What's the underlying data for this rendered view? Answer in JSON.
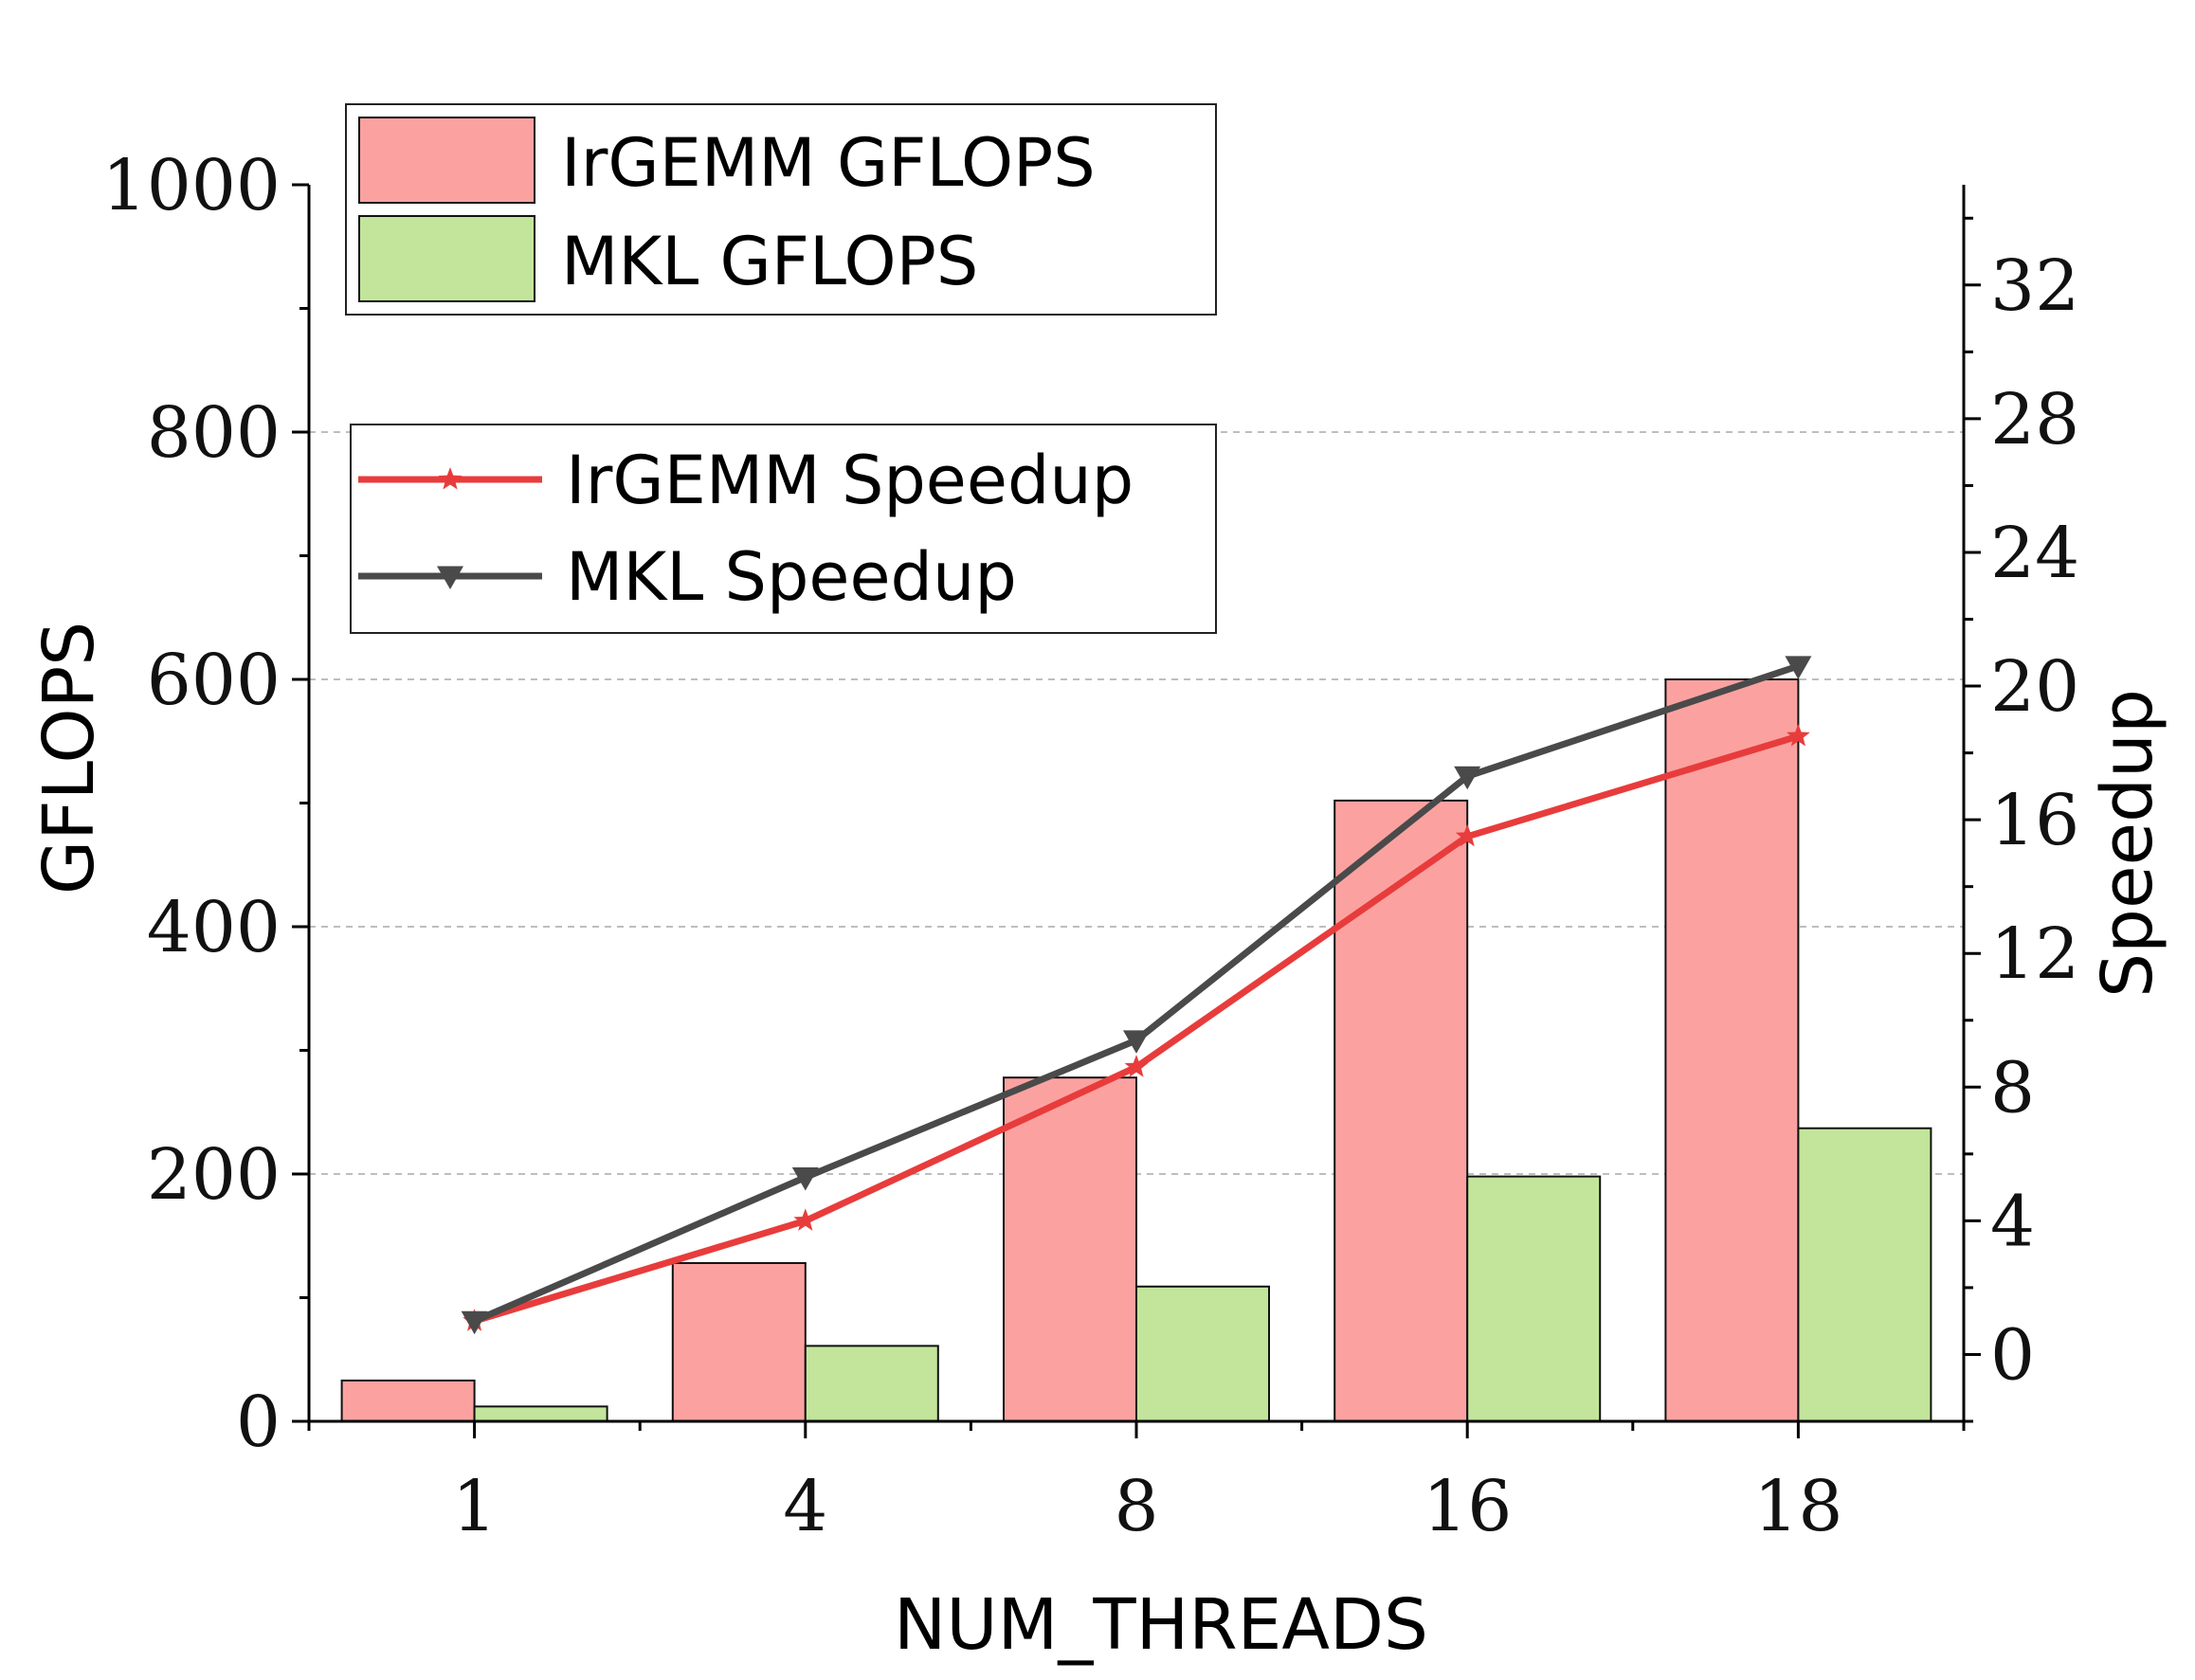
{
  "chart_data": {
    "type": "bar",
    "categories": [
      "1",
      "4",
      "8",
      "16",
      "18"
    ],
    "xlabel": "NUM_THREADS",
    "ylabel": "GFLOPS",
    "y2label": "Speedup",
    "ylim": [
      0,
      1000
    ],
    "yticks": [
      0,
      200,
      400,
      600,
      800,
      1000
    ],
    "y2lim": [
      -2,
      35
    ],
    "y2ticks": [
      0,
      4,
      8,
      12,
      16,
      20,
      24,
      28,
      32
    ],
    "grid": "horizontal dashed at major left ticks",
    "bar_series": [
      {
        "name": "IrGEMM GFLOPS",
        "values": [
          33,
          128,
          278,
          502,
          600
        ],
        "color": "#fba2a1"
      },
      {
        "name": "MKL GFLOPS",
        "values": [
          12,
          61,
          109,
          198,
          237
        ],
        "color": "#c2e59b"
      }
    ],
    "line_series": [
      {
        "name": "IrGEMM Speedup",
        "values": [
          1.0,
          4.0,
          8.6,
          15.5,
          18.5
        ],
        "color": "#e83c3c",
        "marker": "star"
      },
      {
        "name": "MKL Speedup",
        "values": [
          1.0,
          5.3,
          9.4,
          17.3,
          20.6
        ],
        "color": "#4a4a4a",
        "marker": "triangle-down"
      }
    ],
    "legends": [
      {
        "placement": "top-left",
        "entries": [
          "IrGEMM GFLOPS",
          "MKL GFLOPS"
        ]
      },
      {
        "placement": "upper-left",
        "entries": [
          "IrGEMM Speedup",
          "MKL Speedup"
        ]
      }
    ]
  }
}
